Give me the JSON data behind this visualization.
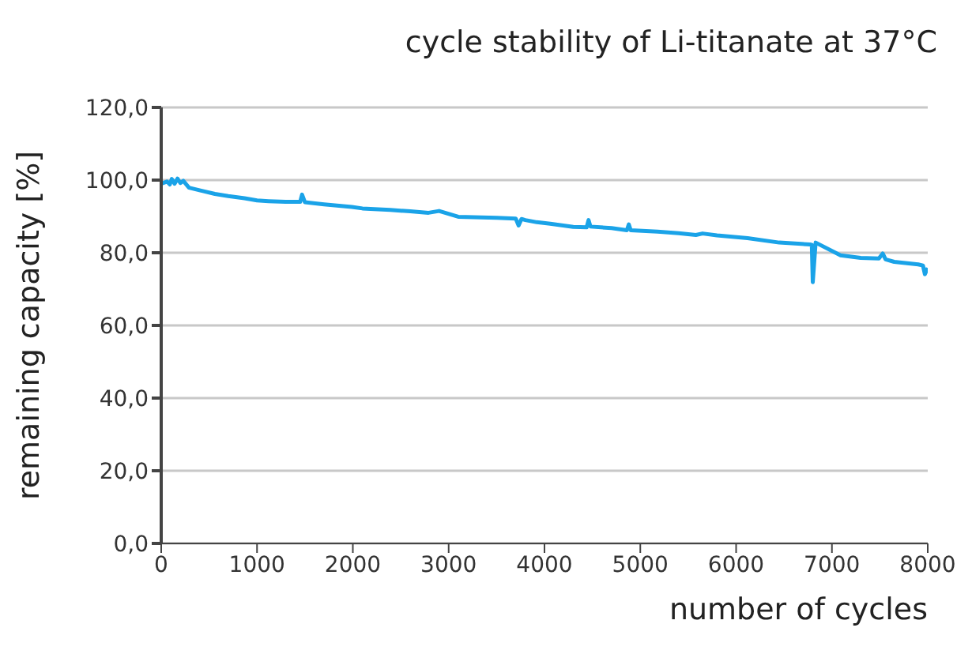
{
  "chart_data": {
    "type": "line",
    "title": "cycle stability of Li-titanate at 37°C",
    "xlabel": "number of cycles",
    "ylabel": "remaining capacity [%]",
    "x": [
      0,
      60,
      90,
      110,
      140,
      170,
      200,
      230,
      290,
      400,
      560,
      700,
      870,
      1000,
      1120,
      1300,
      1450,
      1470,
      1500,
      1700,
      1990,
      2100,
      2390,
      2600,
      2790,
      2900,
      3100,
      3500,
      3700,
      3730,
      3760,
      3800,
      3920,
      4060,
      4300,
      4440,
      4460,
      4480,
      4700,
      4860,
      4880,
      4900,
      5180,
      5400,
      5580,
      5650,
      5800,
      6120,
      6450,
      6770,
      6790,
      6800,
      6830,
      7090,
      7300,
      7490,
      7530,
      7560,
      7650,
      7900,
      7950,
      7970,
      8000
    ],
    "series": [
      {
        "color": "#1aa3e8",
        "values": [
          99.0,
          99.6,
          98.8,
          100.3,
          99.0,
          100.4,
          99.2,
          99.8,
          97.9,
          97.2,
          96.2,
          95.6,
          95.0,
          94.4,
          94.2,
          94.0,
          94.0,
          96.0,
          93.9,
          93.3,
          92.6,
          92.2,
          91.8,
          91.4,
          91.0,
          91.5,
          89.9,
          89.6,
          89.4,
          87.5,
          89.3,
          89.0,
          88.4,
          88.0,
          87.1,
          87.0,
          89.0,
          87.2,
          86.8,
          86.2,
          87.8,
          86.2,
          85.8,
          85.4,
          84.9,
          85.3,
          84.8,
          84.0,
          82.8,
          82.3,
          82.2,
          71.9,
          82.8,
          79.3,
          78.6,
          78.4,
          79.8,
          78.2,
          77.5,
          76.8,
          76.5,
          74.1,
          75.8
        ]
      }
    ],
    "ylim": [
      0,
      120
    ],
    "yticks": [
      {
        "value": 0,
        "label": "0,0"
      },
      {
        "value": 20,
        "label": "20,0"
      },
      {
        "value": 40,
        "label": "40,0"
      },
      {
        "value": 60,
        "label": "60,0"
      },
      {
        "value": 80,
        "label": "80,0"
      },
      {
        "value": 100,
        "label": "100,0"
      },
      {
        "value": 120,
        "label": "120,0"
      }
    ],
    "xlim": [
      0,
      8000
    ],
    "xticks": [
      0,
      1000,
      2000,
      3000,
      4000,
      5000,
      6000,
      7000,
      8000
    ],
    "grid": "y",
    "marker": "none",
    "line_style": "solid"
  }
}
